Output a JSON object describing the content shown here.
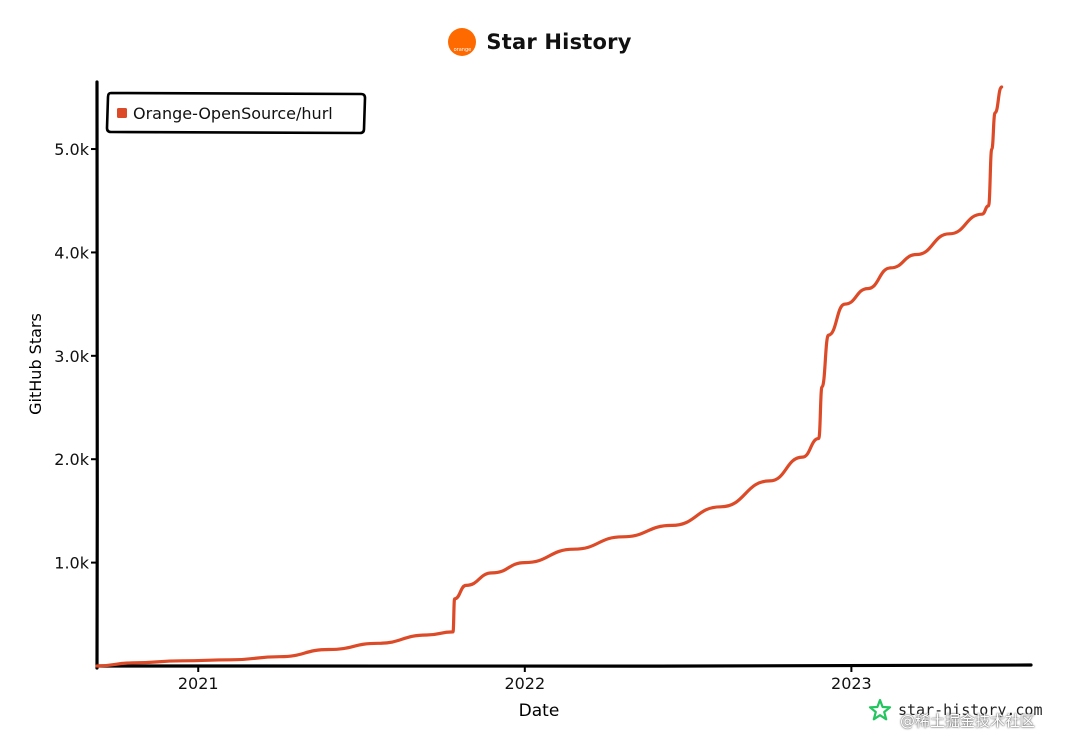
{
  "header": {
    "logo_label": "orange",
    "title": "Star History"
  },
  "colors": {
    "series": "#dc4a27",
    "logo": "#ff6a00",
    "axis": "#000000",
    "watermark_icon": "#22c55e"
  },
  "watermark": {
    "site": "star-history.com",
    "cn_text": "@稀土掘金技术社区"
  },
  "chart_data": {
    "type": "line",
    "title": "Star History",
    "xlabel": "Date",
    "ylabel": "GitHub Stars",
    "x_ticks": [
      {
        "label": "2021",
        "value": 2021.0
      },
      {
        "label": "2022",
        "value": 2022.0
      },
      {
        "label": "2023",
        "value": 2023.0
      }
    ],
    "y_ticks": [
      {
        "label": "1.0k",
        "value": 1000
      },
      {
        "label": "2.0k",
        "value": 2000
      },
      {
        "label": "3.0k",
        "value": 3000
      },
      {
        "label": "4.0k",
        "value": 4000
      },
      {
        "label": "5.0k",
        "value": 5000
      }
    ],
    "xlim": [
      2020.69,
      2023.55
    ],
    "ylim": [
      0,
      5600
    ],
    "legend": {
      "position": "top-left",
      "entries": [
        "Orange-OpenSource/hurl"
      ]
    },
    "series": [
      {
        "name": "Orange-OpenSource/hurl",
        "points": [
          [
            2020.69,
            0
          ],
          [
            2020.8,
            30
          ],
          [
            2020.95,
            50
          ],
          [
            2021.1,
            60
          ],
          [
            2021.25,
            90
          ],
          [
            2021.4,
            160
          ],
          [
            2021.55,
            220
          ],
          [
            2021.7,
            300
          ],
          [
            2021.78,
            330
          ],
          [
            2021.785,
            650
          ],
          [
            2021.82,
            780
          ],
          [
            2021.9,
            900
          ],
          [
            2022.0,
            1000
          ],
          [
            2022.15,
            1130
          ],
          [
            2022.3,
            1250
          ],
          [
            2022.45,
            1360
          ],
          [
            2022.6,
            1540
          ],
          [
            2022.75,
            1790
          ],
          [
            2022.85,
            2020
          ],
          [
            2022.9,
            2200
          ],
          [
            2022.91,
            2700
          ],
          [
            2022.93,
            3200
          ],
          [
            2022.98,
            3500
          ],
          [
            2023.05,
            3650
          ],
          [
            2023.12,
            3850
          ],
          [
            2023.2,
            3980
          ],
          [
            2023.3,
            4180
          ],
          [
            2023.4,
            4370
          ],
          [
            2023.42,
            4450
          ],
          [
            2023.43,
            5000
          ],
          [
            2023.44,
            5350
          ],
          [
            2023.46,
            5600
          ]
        ]
      }
    ]
  }
}
